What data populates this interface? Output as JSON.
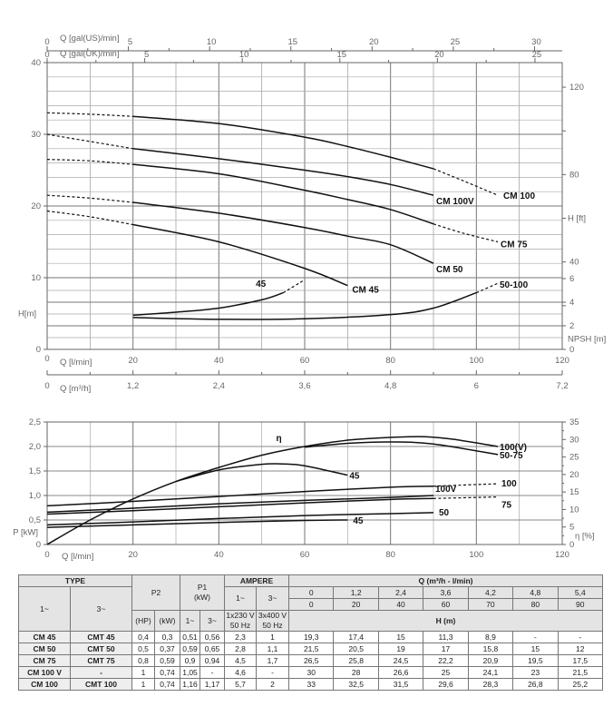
{
  "chart_data": [
    {
      "type": "line",
      "title": "",
      "xlabel": "Q [l/min]",
      "ylabel": "H[m]",
      "xlim": [
        0,
        120
      ],
      "ylim": [
        0,
        40
      ],
      "x_ticks": [
        0,
        20,
        40,
        60,
        80,
        100,
        120
      ],
      "y_ticks": [
        0,
        10,
        20,
        30,
        40
      ],
      "grid": true,
      "secondary_axes": {
        "top_us": {
          "label": "Q [gal(US)/min]",
          "ticks": [
            0,
            5,
            10,
            15,
            20,
            25,
            30
          ]
        },
        "top_uk": {
          "label": "Q [gal(UK)/min]",
          "ticks": [
            0,
            5,
            10,
            15,
            20,
            25
          ]
        },
        "bottom_m3h": {
          "label": "Q [m³/h]",
          "ticks": [
            "0",
            "1,2",
            "2,4",
            "3,6",
            "4,8",
            "6",
            "7,2"
          ]
        },
        "right_ft": {
          "label": "H [ft]",
          "ticks": [
            40,
            80,
            120
          ]
        },
        "right_npsh": {
          "label": "NPSH [m]",
          "ticks": [
            0,
            2,
            4,
            6
          ],
          "ylim": [
            0,
            6
          ]
        }
      },
      "series": [
        {
          "name": "CM 100",
          "solid": [
            [
              20,
              32.5
            ],
            [
              40,
              31.5
            ],
            [
              60,
              29.6
            ],
            [
              70,
              28.3
            ],
            [
              80,
              26.8
            ],
            [
              90,
              25.2
            ]
          ],
          "dashed": [
            [
              [
                0,
                33
              ],
              [
                10,
                32.8
              ],
              [
                20,
                32.5
              ]
            ],
            [
              [
                90,
                25.2
              ],
              [
                97,
                23.5
              ],
              [
                105,
                21.5
              ]
            ]
          ]
        },
        {
          "name": "CM 100V",
          "solid": [
            [
              20,
              28
            ],
            [
              40,
              26.6
            ],
            [
              60,
              25
            ],
            [
              70,
              24.1
            ],
            [
              80,
              23
            ],
            [
              90,
              21.5
            ]
          ],
          "dashed": [
            [
              [
                0,
                30
              ],
              [
                10,
                29
              ],
              [
                20,
                28
              ]
            ]
          ]
        },
        {
          "name": "CM 75",
          "solid": [
            [
              20,
              25.8
            ],
            [
              40,
              24.5
            ],
            [
              60,
              22.2
            ],
            [
              70,
              20.9
            ],
            [
              80,
              19.5
            ],
            [
              90,
              17.5
            ]
          ],
          "dashed": [
            [
              [
                0,
                26.5
              ],
              [
                10,
                26.3
              ],
              [
                20,
                25.8
              ]
            ],
            [
              [
                90,
                17.5
              ],
              [
                97,
                16.2
              ],
              [
                105,
                15
              ]
            ]
          ]
        },
        {
          "name": "CM 50",
          "solid": [
            [
              20,
              20.5
            ],
            [
              40,
              19
            ],
            [
              60,
              17
            ],
            [
              70,
              15.8
            ],
            [
              80,
              14.6
            ],
            [
              90,
              12
            ]
          ],
          "dashed": [
            [
              [
                0,
                21.5
              ],
              [
                10,
                21.1
              ],
              [
                20,
                20.5
              ]
            ]
          ]
        },
        {
          "name": "CM 45",
          "solid": [
            [
              20,
              17.4
            ],
            [
              40,
              15
            ],
            [
              60,
              11.3
            ],
            [
              70,
              8.9
            ]
          ],
          "dashed": [
            [
              [
                0,
                19.3
              ],
              [
                10,
                18.5
              ],
              [
                20,
                17.4
              ]
            ]
          ]
        }
      ],
      "npsh_series": [
        {
          "name": "45",
          "solid": [
            [
              20,
              2.9
            ],
            [
              30,
              3.15
            ],
            [
              40,
              3.5
            ],
            [
              50,
              4.2
            ],
            [
              55,
              4.8
            ]
          ],
          "dashed": [
            [
              [
                55,
                4.8
              ],
              [
                60,
                5.9
              ]
            ]
          ]
        },
        {
          "name": "50-100",
          "solid": [
            [
              20,
              2.7
            ],
            [
              40,
              2.55
            ],
            [
              60,
              2.6
            ],
            [
              80,
              2.95
            ],
            [
              90,
              3.5
            ],
            [
              100,
              4.8
            ]
          ],
          "dashed": [
            [
              [
                100,
                4.8
              ],
              [
                105,
                5.6
              ]
            ]
          ]
        }
      ]
    },
    {
      "type": "line",
      "title": "",
      "xlabel": "Q [l/min]",
      "ylabel": "P [kW]",
      "y2label": "η [%]",
      "xlim": [
        0,
        120
      ],
      "ylim": [
        0,
        2.5
      ],
      "y2lim": [
        0,
        35
      ],
      "x_ticks": [
        0,
        20,
        40,
        60,
        80,
        100,
        120
      ],
      "y_ticks": [
        "0",
        "0,5",
        "1,0",
        "1,5",
        "2,0",
        "2,5"
      ],
      "y2_ticks": [
        0,
        5,
        10,
        15,
        20,
        25,
        30,
        35
      ],
      "grid": true,
      "efficiency_label": "η",
      "power_series": [
        {
          "name": "100",
          "solid": [
            [
              0,
              0.79
            ],
            [
              20,
              0.88
            ],
            [
              40,
              0.98
            ],
            [
              60,
              1.08
            ],
            [
              80,
              1.17
            ],
            [
              90,
              1.19
            ]
          ],
          "dashed": [
            [
              [
                90,
                1.19
              ],
              [
                105,
                1.24
              ]
            ]
          ]
        },
        {
          "name": "100V",
          "solid": [
            [
              0,
              0.66
            ],
            [
              20,
              0.74
            ],
            [
              40,
              0.83
            ],
            [
              60,
              0.9
            ],
            [
              80,
              0.96
            ],
            [
              90,
              1.0
            ]
          ],
          "dashed": []
        },
        {
          "name": "75",
          "solid": [
            [
              0,
              0.62
            ],
            [
              20,
              0.69
            ],
            [
              40,
              0.77
            ],
            [
              60,
              0.85
            ],
            [
              80,
              0.92
            ],
            [
              90,
              0.94
            ]
          ],
          "dashed": [
            [
              [
                90,
                0.94
              ],
              [
                105,
                0.97
              ]
            ]
          ]
        },
        {
          "name": "50",
          "solid": [
            [
              0,
              0.4
            ],
            [
              20,
              0.46
            ],
            [
              40,
              0.53
            ],
            [
              60,
              0.59
            ],
            [
              80,
              0.63
            ],
            [
              90,
              0.65
            ]
          ],
          "dashed": []
        },
        {
          "name": "45",
          "solid": [
            [
              0,
              0.35
            ],
            [
              20,
              0.4
            ],
            [
              40,
              0.45
            ],
            [
              60,
              0.49
            ],
            [
              70,
              0.5
            ]
          ],
          "dashed": []
        }
      ],
      "efficiency_series": [
        {
          "name": "100(V)",
          "solid": [
            [
              0,
              0
            ],
            [
              10,
              7
            ],
            [
              20,
              13
            ],
            [
              30,
              18
            ],
            [
              40,
              22
            ],
            [
              50,
              25.5
            ],
            [
              60,
              28
            ],
            [
              70,
              29.8
            ],
            [
              80,
              30.6
            ],
            [
              88,
              30.8
            ],
            [
              95,
              30
            ],
            [
              105,
              28
            ]
          ]
        },
        {
          "name": "50-75",
          "solid": [
            [
              60,
              27.8
            ],
            [
              70,
              28.9
            ],
            [
              80,
              29.3
            ],
            [
              90,
              28.7
            ],
            [
              105,
              25.7
            ]
          ]
        },
        {
          "name": "45",
          "solid": [
            [
              30,
              18
            ],
            [
              40,
              21.3
            ],
            [
              50,
              22.9
            ],
            [
              55,
              23
            ],
            [
              60,
              22.5
            ],
            [
              70,
              19.8
            ]
          ]
        }
      ]
    }
  ],
  "table": {
    "type_header": "TYPE",
    "p2_header": "P2",
    "p1_header": "P1",
    "p1_unit": "(kW)",
    "ampere_header": "AMPERE",
    "q_header": "Q (m³/h - l/min)",
    "single_phase": "1~",
    "three_phase": "3~",
    "amp_1_voltage": "1x230 V",
    "amp_3_voltage": "3x400 V",
    "freq": "50 Hz",
    "hp": "(HP)",
    "kw": "(kW)",
    "h_header": "H (m)",
    "q_m3h": [
      "0",
      "1,2",
      "2,4",
      "3,6",
      "4,2",
      "4,8",
      "5,4"
    ],
    "q_lmin": [
      "0",
      "20",
      "40",
      "60",
      "70",
      "80",
      "90"
    ],
    "rows": [
      {
        "type1": "CM 45",
        "type3": "CMT 45",
        "hp": "0,4",
        "kw": "0,3",
        "p1_1": "0,51",
        "p1_3": "0,56",
        "a1": "2,3",
        "a3": "1",
        "h": [
          "19,3",
          "17,4",
          "15",
          "11,3",
          "8,9",
          "-",
          "-"
        ]
      },
      {
        "type1": "CM 50",
        "type3": "CMT 50",
        "hp": "0,5",
        "kw": "0,37",
        "p1_1": "0,59",
        "p1_3": "0,65",
        "a1": "2,8",
        "a3": "1,1",
        "h": [
          "21,5",
          "20,5",
          "19",
          "17",
          "15,8",
          "15",
          "12"
        ]
      },
      {
        "type1": "CM 75",
        "type3": "CMT 75",
        "hp": "0,8",
        "kw": "0,59",
        "p1_1": "0,9",
        "p1_3": "0,94",
        "a1": "4,5",
        "a3": "1,7",
        "h": [
          "26,5",
          "25,8",
          "24,5",
          "22,2",
          "20,9",
          "19,5",
          "17,5"
        ]
      },
      {
        "type1": "CM 100 V",
        "type3": "-",
        "hp": "1",
        "kw": "0,74",
        "p1_1": "1,05",
        "p1_3": "-",
        "a1": "4,6",
        "a3": "-",
        "h": [
          "30",
          "28",
          "26,6",
          "25",
          "24,1",
          "23",
          "21,5"
        ]
      },
      {
        "type1": "CM 100",
        "type3": "CMT 100",
        "hp": "1",
        "kw": "0,74",
        "p1_1": "1,16",
        "p1_3": "1,17",
        "a1": "5,7",
        "a3": "2",
        "h": [
          "33",
          "32,5",
          "31,5",
          "29,6",
          "28,3",
          "26,8",
          "25,2"
        ]
      }
    ]
  }
}
